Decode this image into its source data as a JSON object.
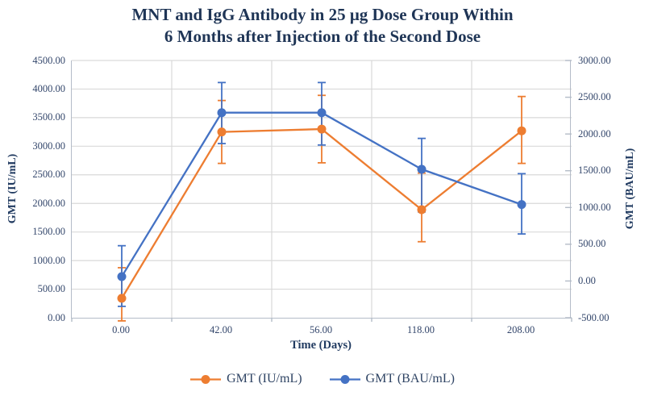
{
  "title": {
    "line1": "MNT and IgG Antibody in 25 μg Dose Group Within",
    "line2": "6 Months after Injection of the Second Dose"
  },
  "colors": {
    "series_orange": "#ED7D31",
    "series_blue": "#4472C4",
    "gridline": "#D9D9D9",
    "axis_line": "#B4BCC8",
    "text_navy": "#203A60"
  },
  "chart_data": {
    "type": "line",
    "title": "MNT and IgG Antibody in 25 μg Dose Group Within 6 Months after Injection of the Second Dose",
    "x_categories": [
      0.0,
      42.0,
      56.0,
      118.0,
      208.0
    ],
    "x_tick_labels": [
      "0.00",
      "42.00",
      "56.00",
      "118.00",
      "208.00"
    ],
    "xlabel": "Time (Days)",
    "grid": true,
    "legend_position": "bottom",
    "left_axis": {
      "label": "GMT (IU/mL)",
      "min": 0,
      "max": 4500,
      "step": 500,
      "tick_labels": [
        "4500.00",
        "4000.00",
        "3500.00",
        "3000.00",
        "2500.00",
        "2000.00",
        "1500.00",
        "1000.00",
        "500.00",
        "0.00"
      ]
    },
    "right_axis": {
      "label": "GMT (BAU/mL)",
      "min": -500,
      "max": 3000,
      "step": 500,
      "tick_labels": [
        "3000.00",
        "2500.00",
        "2000.00",
        "1500.00",
        "1000.00",
        "500.00",
        "0.00",
        "-500.00"
      ]
    },
    "series": [
      {
        "name": "GMT (IU/mL)",
        "axis": "left",
        "color": "#ED7D31",
        "values": [
          340,
          3250,
          3300,
          1890,
          3270
        ],
        "error_high": [
          875,
          3800,
          3890,
          2530,
          3870
        ],
        "error_low": [
          -55,
          2700,
          2710,
          1330,
          2700
        ]
      },
      {
        "name": "GMT (BAU/mL)",
        "axis": "right",
        "color": "#4472C4",
        "values": [
          60,
          2290,
          2290,
          1520,
          1040
        ],
        "error_high": [
          480,
          2700,
          2700,
          1940,
          1460
        ],
        "error_low": [
          -345,
          1870,
          1850,
          940,
          640
        ]
      }
    ]
  }
}
